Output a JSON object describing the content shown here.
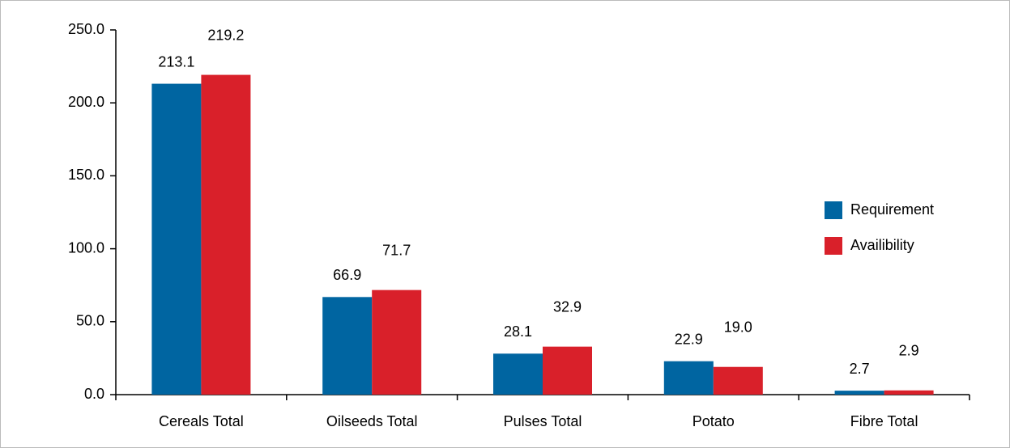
{
  "chart_data": {
    "type": "bar",
    "categories": [
      "Cereals Total",
      "Oilseeds Total",
      "Pulses Total",
      "Potato",
      "Fibre Total"
    ],
    "series": [
      {
        "name": "Requirement",
        "color": "#0065a1",
        "values": [
          213.1,
          66.9,
          28.1,
          22.9,
          2.7
        ],
        "value_labels": [
          "213.1",
          "66.9",
          "28.1",
          "22.9",
          "2.7"
        ]
      },
      {
        "name": "Availibility",
        "color": "#d9202a",
        "values": [
          219.2,
          71.7,
          32.9,
          19.0,
          2.9
        ],
        "value_labels": [
          "219.2",
          "71.7",
          "32.9",
          "19.0",
          "2.9"
        ]
      }
    ],
    "ylim": [
      0,
      250
    ],
    "yticks": [
      {
        "value": 0,
        "label": "0.0"
      },
      {
        "value": 50,
        "label": "50.0"
      },
      {
        "value": 100,
        "label": "100.0"
      },
      {
        "value": 150,
        "label": "150.0"
      },
      {
        "value": 200,
        "label": "200.0"
      },
      {
        "value": 250,
        "label": "250.0"
      }
    ],
    "grid": false,
    "legend": "right"
  }
}
